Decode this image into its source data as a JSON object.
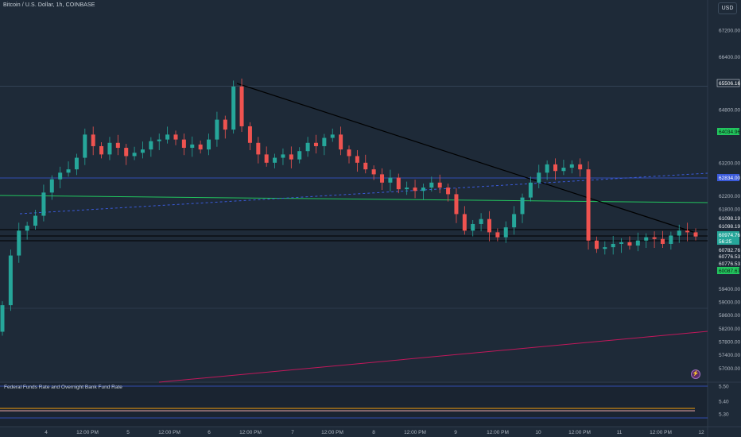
{
  "header": {
    "symbol_title": "Bitcoin / U.S. Dollar, 1h, COINBASE",
    "currency_button": "USD"
  },
  "indicator": {
    "title": "Federal Funds Rate and Overnight Bank Fund Rate",
    "axis_ticks": [
      "5.50",
      "5.40",
      "5.30"
    ]
  },
  "price_axis": {
    "ticks": [
      "67200.00",
      "66400.00",
      "64800.00",
      "63200.00",
      "62200.00",
      "61800.00",
      "59400.00",
      "59000.00",
      "58600.00",
      "58200.00",
      "57800.00",
      "57400.00",
      "57000.00"
    ],
    "labels": [
      {
        "text": "65506.16",
        "style": "outline"
      },
      {
        "text": "64034.96",
        "style": "green"
      },
      {
        "text": "62834.00",
        "style": "blue"
      },
      {
        "text": "61098.19",
        "style": "plain"
      },
      {
        "text": "61098.19",
        "style": "plain"
      },
      {
        "text": "60974.76",
        "style": "teal"
      },
      {
        "text": "56:25",
        "style": "teal"
      },
      {
        "text": "60782.76",
        "style": "plain"
      },
      {
        "text": "60776.53",
        "style": "plain"
      },
      {
        "text": "60776.53",
        "style": "plain"
      },
      {
        "text": "60087.67",
        "style": "green"
      }
    ]
  },
  "time_axis": {
    "labels": [
      "4",
      "12:00 PM",
      "5",
      "12:00 PM",
      "6",
      "12:00 PM",
      "7",
      "12:00 PM",
      "8",
      "12:00 PM",
      "9",
      "12:00 PM",
      "10",
      "12:00 PM",
      "11",
      "12:00 PM",
      "12"
    ]
  },
  "colors": {
    "background": "#1e2a38",
    "up_candle": "#26a69a",
    "down_candle": "#ef5350",
    "trend_line": "#000000",
    "green_line": "#22c55e",
    "blue_dashed": "#3b5bdb",
    "pink_line": "#c2185b",
    "orange_rate": "#f59e0b"
  },
  "chart_data": {
    "type": "candlestick",
    "title": "Bitcoin / U.S. Dollar, 1h, COINBASE",
    "series": [
      {
        "name": "close",
        "values": [
          58900,
          60400,
          61150,
          61300,
          61600,
          62300,
          62700,
          62900,
          63000,
          63350,
          64050,
          63700,
          63450,
          63800,
          63650,
          63400,
          63500,
          63600,
          63850,
          63900,
          64050,
          63900,
          63650,
          63750,
          63600,
          63900,
          64500,
          64200,
          65500,
          64300,
          63800,
          63450,
          63200,
          63350,
          63450,
          63300,
          63550,
          63800,
          63700,
          63950,
          64050,
          63600,
          63400,
          63200,
          63000,
          62850,
          62600,
          62750,
          62400,
          62450,
          62350,
          62450,
          62600,
          62450,
          62250,
          61650,
          61150,
          61350,
          61500,
          61100,
          60950,
          61250,
          61650,
          62150,
          62600,
          62900,
          63150,
          62950,
          63050,
          63150,
          63000,
          60850,
          60600,
          60650,
          60750,
          60800,
          60700,
          60850,
          60950,
          60900,
          60750,
          61000,
          61150,
          61100,
          60974.76
        ]
      }
    ],
    "ylabel": "USD",
    "ylim": [
      56800,
      67600
    ],
    "horizontal_levels": [
      65506.16,
      64034.96,
      62834.0,
      61098.19,
      60782.76,
      60776.53,
      60087.67
    ],
    "grid": false
  }
}
